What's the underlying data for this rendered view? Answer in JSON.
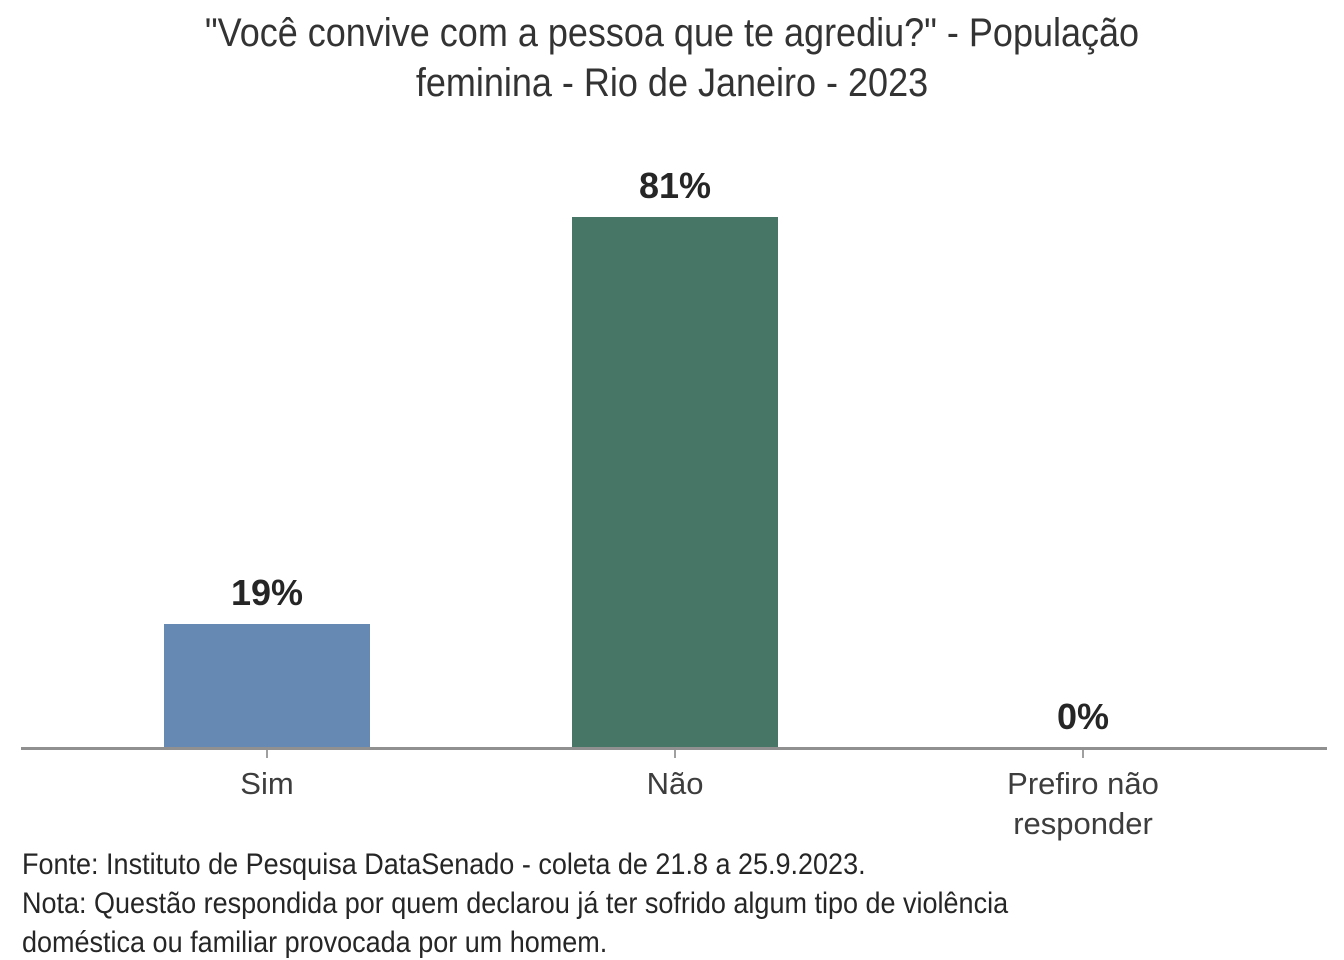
{
  "chart_data": {
    "type": "bar",
    "title": "\"Você convive com a pessoa que te agrediu?\" - População feminina - Rio de Janeiro - 2023",
    "title_display": "\"Você convive com a pessoa que te agrediu?\" - População\nfeminina - Rio de Janeiro - 2023",
    "categories": [
      "Sim",
      "Não",
      "Prefiro não responder"
    ],
    "category_wrap": [
      [
        "Sim"
      ],
      [
        "Não"
      ],
      [
        "Prefiro não",
        "responder"
      ]
    ],
    "values": [
      19,
      81,
      0
    ],
    "value_labels": [
      "19%",
      "81%",
      "0%"
    ],
    "bar_colors": [
      "#6689b4",
      "#477667",
      null
    ],
    "ylim": [
      0,
      100
    ],
    "xlabel": "",
    "ylabel": "",
    "grid": false,
    "legend": false,
    "source_note": "Fonte: Instituto de Pesquisa DataSenado - coleta de 21.8 a 25.9.2023.",
    "method_note": "Nota: Questão respondida por quem declarou já ter sofrido algum tipo de violência doméstica ou familiar provocada por um homem.",
    "footnote_lines": [
      "Fonte: Instituto de Pesquisa DataSenado - coleta de 21.8 a 25.9.2023.",
      "Nota: Questão respondida por quem declarou já ter sofrido algum tipo de violência",
      "doméstica ou familiar provocada por um homem."
    ],
    "colors": {
      "background": "#ffffff",
      "title": "#333333",
      "value_label": "#262626",
      "category_label": "#3d3d3d",
      "axis": "#909090",
      "tick": "#a0a0a0"
    }
  }
}
